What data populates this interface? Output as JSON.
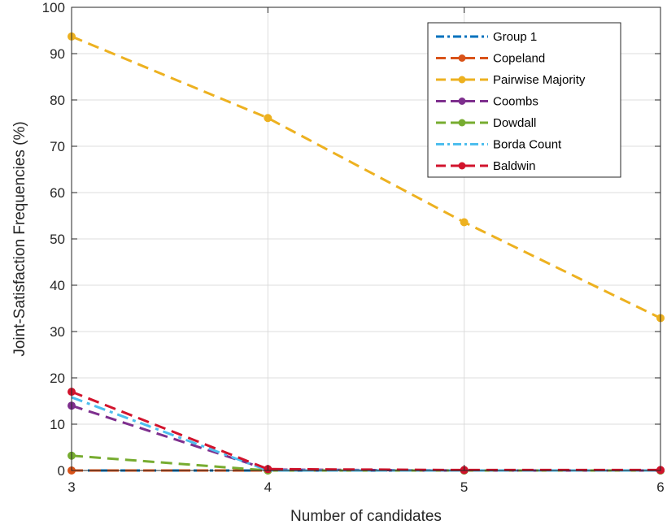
{
  "chart_data": {
    "type": "line",
    "xlabel": "Number of candidates",
    "ylabel": "Joint-Satisfaction Frequencies (%)",
    "x": [
      3,
      4,
      5,
      6
    ],
    "xlim": [
      3,
      6
    ],
    "ylim": [
      0,
      100
    ],
    "xticks": [
      "3",
      "4",
      "5",
      "6"
    ],
    "yticks": [
      "0",
      "10",
      "20",
      "30",
      "40",
      "50",
      "60",
      "70",
      "80",
      "90",
      "100"
    ],
    "grid": true,
    "legend_position": "top-right",
    "series": [
      {
        "name": "Group 1",
        "values": [
          0,
          0,
          0,
          0
        ],
        "color": "#0072BD",
        "style": "dashdot",
        "markers": false
      },
      {
        "name": "Copeland",
        "values": [
          0,
          0,
          0,
          0
        ],
        "color": "#D95319",
        "style": "dashed",
        "markers": true
      },
      {
        "name": "Pairwise Majority",
        "values": [
          93.7,
          76.1,
          53.6,
          32.9
        ],
        "color": "#EDB120",
        "style": "dashed",
        "markers": true
      },
      {
        "name": "Coombs",
        "values": [
          14.0,
          0.2,
          0,
          0
        ],
        "color": "#7E2F8E",
        "style": "dashed",
        "markers": true
      },
      {
        "name": "Dowdall",
        "values": [
          3.2,
          0,
          0,
          0
        ],
        "color": "#77AC30",
        "style": "dashed",
        "markers": true
      },
      {
        "name": "Borda Count",
        "values": [
          15.8,
          0,
          0,
          0
        ],
        "color": "#4DBEEE",
        "style": "dashdot",
        "markers": false
      },
      {
        "name": "Baldwin",
        "values": [
          17.0,
          0.3,
          0.1,
          0.1
        ],
        "color": "#D2132C",
        "style": "dashed",
        "markers": true
      }
    ]
  }
}
